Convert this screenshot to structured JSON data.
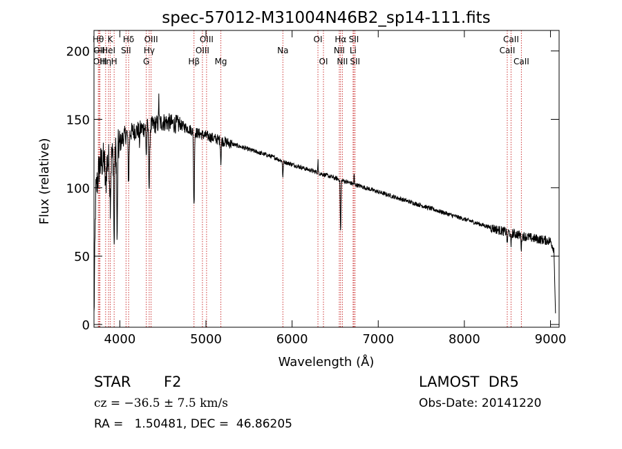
{
  "chart_data": {
    "type": "line",
    "title": "spec-57012-M31004N46B2_sp14-111.fits",
    "xlabel": "Wavelength (Å)",
    "ylabel": "Flux (relative)",
    "xlim": [
      3700,
      9100
    ],
    "ylim": [
      -2,
      215
    ],
    "xticks": [
      4000,
      5000,
      6000,
      7000,
      8000,
      9000
    ],
    "yticks": [
      0,
      50,
      100,
      150,
      200
    ],
    "grid": false,
    "line_color": "#000000",
    "marker_color": "#cc3333",
    "continuum": {
      "x": [
        3700,
        3720,
        3760,
        3800,
        3850,
        3900,
        3950,
        4000,
        4050,
        4100,
        4150,
        4200,
        4250,
        4300,
        4350,
        4400,
        4450,
        4500,
        4550,
        4600,
        4700,
        4800,
        4900,
        5000,
        5100,
        5200,
        5300,
        5400,
        5500,
        5600,
        5700,
        5800,
        5900,
        6000,
        6100,
        6200,
        6300,
        6400,
        6500,
        6600,
        6700,
        6800,
        6900,
        7000,
        7200,
        7400,
        7600,
        7800,
        8000,
        8200,
        8400,
        8600,
        8800,
        8900,
        9000,
        9040,
        9060
      ],
      "y": [
        5,
        95,
        115,
        120,
        118,
        122,
        125,
        132,
        138,
        140,
        141,
        142,
        143,
        144,
        145,
        146,
        147,
        148,
        148,
        147,
        146,
        143,
        140,
        138,
        136,
        134,
        132,
        130,
        128,
        126,
        124,
        122,
        119,
        117,
        115,
        113,
        111,
        109,
        107,
        105,
        103,
        101,
        99,
        97,
        93,
        89,
        85,
        81,
        77,
        73,
        69,
        66,
        63,
        62,
        61,
        55,
        3
      ]
    },
    "absorption_lines": [
      {
        "x": 3835,
        "depth": 20,
        "width": 8
      },
      {
        "x": 3889,
        "depth": 30,
        "width": 8
      },
      {
        "x": 3934,
        "depth": 70,
        "width": 6
      },
      {
        "x": 3969,
        "depth": 70,
        "width": 6
      },
      {
        "x": 4102,
        "depth": 35,
        "width": 8
      },
      {
        "x": 4227,
        "depth": 10,
        "width": 5
      },
      {
        "x": 4307,
        "depth": 20,
        "width": 6
      },
      {
        "x": 4341,
        "depth": 45,
        "width": 8
      },
      {
        "x": 4861,
        "depth": 55,
        "width": 7
      },
      {
        "x": 5173,
        "depth": 15,
        "width": 6
      },
      {
        "x": 5893,
        "depth": 12,
        "width": 5
      },
      {
        "x": 6563,
        "depth": 38,
        "width": 6
      },
      {
        "x": 8498,
        "depth": 10,
        "width": 5
      },
      {
        "x": 8542,
        "depth": 12,
        "width": 5
      },
      {
        "x": 8662,
        "depth": 10,
        "width": 5
      }
    ],
    "emission_spikes": [
      {
        "x": 4453,
        "height": 25
      },
      {
        "x": 6300,
        "height": 10
      },
      {
        "x": 6720,
        "height": 8
      }
    ],
    "line_markers": [
      {
        "x": 3750,
        "label": "Hθ",
        "row": 0
      },
      {
        "x": 3760,
        "label": "OII",
        "row": 1
      },
      {
        "x": 3770,
        "label": "OIII",
        "row": 2
      },
      {
        "x": 3835,
        "label": "Hη",
        "row": 2
      },
      {
        "x": 3869,
        "label": "HeI",
        "row": 1
      },
      {
        "x": 3889,
        "label": "K",
        "row": 0
      },
      {
        "x": 3934,
        "label": "H",
        "row": 2
      },
      {
        "x": 4072,
        "label": "SII",
        "row": 1
      },
      {
        "x": 4102,
        "label": "Hδ",
        "row": 0
      },
      {
        "x": 4307,
        "label": "G",
        "row": 2
      },
      {
        "x": 4341,
        "label": "Hγ",
        "row": 1
      },
      {
        "x": 4363,
        "label": "OIII",
        "row": 0
      },
      {
        "x": 4861,
        "label": "Hβ",
        "row": 2
      },
      {
        "x": 4959,
        "label": "OIII",
        "row": 1
      },
      {
        "x": 5007,
        "label": "OIII",
        "row": 0
      },
      {
        "x": 5173,
        "label": "Mg",
        "row": 2
      },
      {
        "x": 5893,
        "label": "Na",
        "row": 1
      },
      {
        "x": 6300,
        "label": "OI",
        "row": 0
      },
      {
        "x": 6364,
        "label": "OI",
        "row": 2
      },
      {
        "x": 6548,
        "label": "NII",
        "row": 1
      },
      {
        "x": 6563,
        "label": "Hα",
        "row": 0
      },
      {
        "x": 6584,
        "label": "NII",
        "row": 2
      },
      {
        "x": 6708,
        "label": "Li",
        "row": 1
      },
      {
        "x": 6717,
        "label": "SII",
        "row": 0
      },
      {
        "x": 6731,
        "label": "SII",
        "row": 2
      },
      {
        "x": 8498,
        "label": "CaII",
        "row": 1
      },
      {
        "x": 8542,
        "label": "CaII",
        "row": 0
      },
      {
        "x": 8662,
        "label": "CaII",
        "row": 2
      }
    ]
  },
  "info": {
    "object_class": "STAR",
    "subclass": "F2",
    "survey": "LAMOST  DR5",
    "redshift": "cz = −36.5 ± 7.5 km/s",
    "obs_date": "Obs-Date: 20141220",
    "coords": "RA =   1.50481, DEC =  46.86205"
  }
}
